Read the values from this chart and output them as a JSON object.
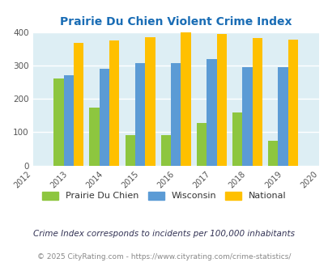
{
  "title": "Prairie Du Chien Violent Crime Index",
  "years": [
    2013,
    2014,
    2015,
    2016,
    2017,
    2018,
    2019
  ],
  "prairie_du_chien": [
    260,
    173,
    90,
    90,
    127,
    160,
    74
  ],
  "wisconsin": [
    270,
    291,
    307,
    307,
    320,
    296,
    294
  ],
  "national": [
    368,
    376,
    384,
    398,
    394,
    381,
    377
  ],
  "color_prairie": "#8dc63f",
  "color_wisconsin": "#5b9bd5",
  "color_national": "#ffc000",
  "bg_color": "#ddeef4",
  "title_color": "#1a6db5",
  "xlim": [
    2012,
    2020
  ],
  "ylim": [
    0,
    400
  ],
  "yticks": [
    0,
    100,
    200,
    300,
    400
  ],
  "legend_labels": [
    "Prairie Du Chien",
    "Wisconsin",
    "National"
  ],
  "footnote1": "Crime Index corresponds to incidents per 100,000 inhabitants",
  "footnote2": "© 2025 CityRating.com - https://www.cityrating.com/crime-statistics/",
  "bar_width": 0.28,
  "figsize": [
    4.06,
    3.3
  ],
  "dpi": 100
}
